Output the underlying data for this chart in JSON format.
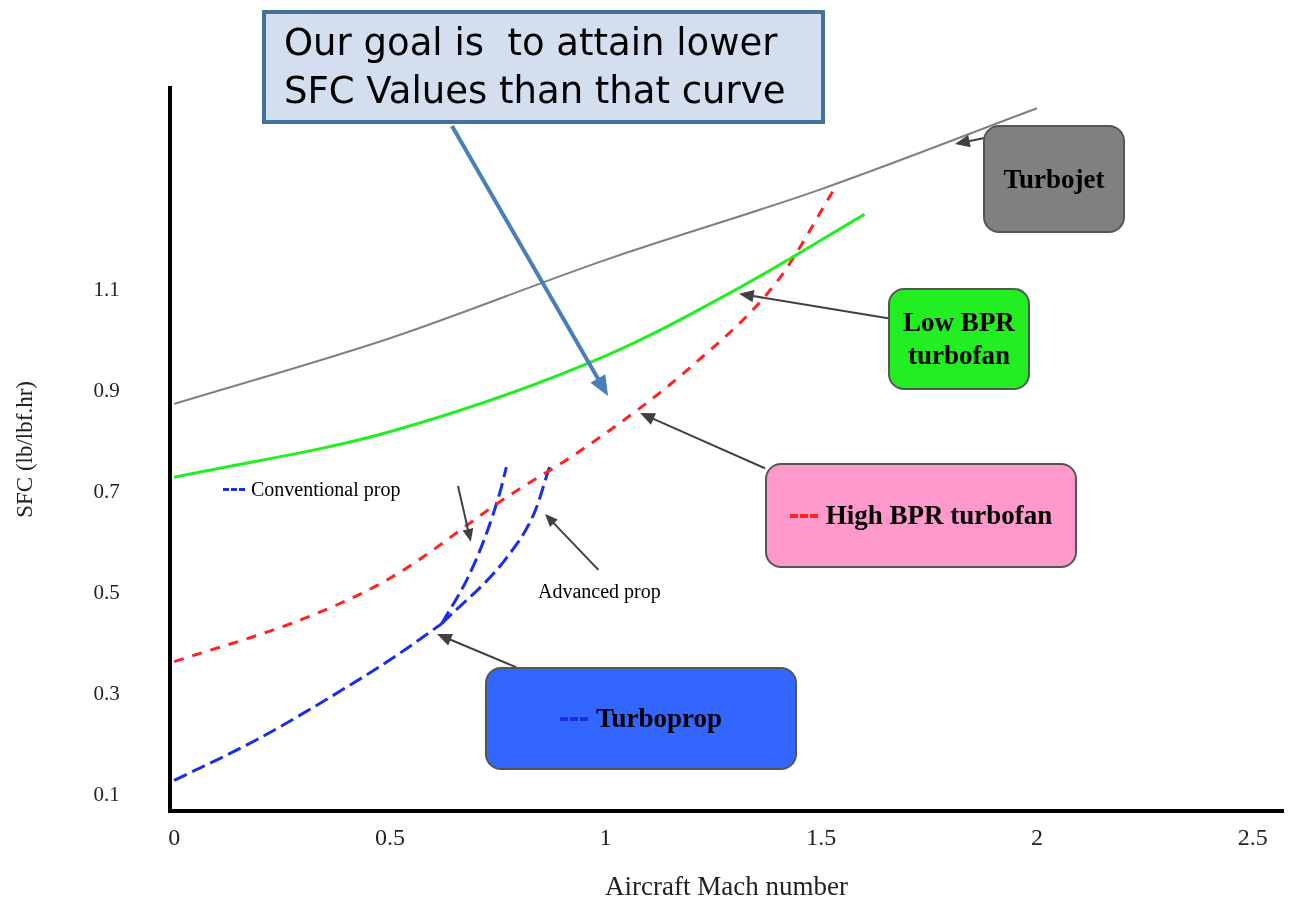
{
  "chart_data": {
    "type": "line",
    "xlabel": "Aircraft Mach number",
    "ylabel": "SFC (lb/lbf.hr)",
    "xlim": [
      -0.01,
      2.57
    ],
    "ylim": [
      0.07,
      1.5
    ],
    "xticks": [
      0,
      0.5,
      1,
      1.5,
      2,
      2.5
    ],
    "yticks": [
      0.1,
      0.3,
      0.5,
      0.7,
      0.9,
      1.1
    ],
    "series": [
      {
        "name": "Turbojet",
        "color": "#808080",
        "line_style": "solid",
        "x": [
          0,
          0.5,
          1,
          1.5,
          2
        ],
        "values": [
          0.875,
          1.005,
          1.16,
          1.3,
          1.46
        ]
      },
      {
        "name": "Low BPR turbofan",
        "color": "#22ee22",
        "line_style": "solid",
        "x": [
          0,
          0.5,
          1,
          1.3,
          1.6
        ],
        "values": [
          0.73,
          0.82,
          0.97,
          1.1,
          1.25
        ]
      },
      {
        "name": "High BPR turbofan",
        "color": "#ff2222",
        "line_style": "dashed",
        "x": [
          0,
          0.3,
          0.5,
          0.77,
          0.955,
          1.2,
          1.4,
          1.53
        ],
        "values": [
          0.365,
          0.45,
          0.53,
          0.69,
          0.79,
          0.95,
          1.12,
          1.3
        ]
      },
      {
        "name": "Turboprop",
        "color": "#1a2ee8",
        "line_style": "dashed",
        "x": [
          0,
          0.19,
          0.41,
          0.52,
          0.62
        ],
        "values": [
          0.13,
          0.21,
          0.32,
          0.38,
          0.44
        ]
      },
      {
        "name": "Conventional prop",
        "color": "#1a2ee8",
        "line_style": "dashed",
        "x": [
          0.62,
          0.68,
          0.72,
          0.755,
          0.77
        ],
        "values": [
          0.44,
          0.53,
          0.61,
          0.7,
          0.75
        ]
      },
      {
        "name": "Advanced prop",
        "color": "#1a2ee8",
        "line_style": "dashed",
        "x": [
          0.62,
          0.77,
          0.835,
          0.87
        ],
        "values": [
          0.44,
          0.57,
          0.66,
          0.75
        ]
      }
    ],
    "legend": "bottom",
    "annotations": [
      "Our goal is  to attain lower SFC Values than that curve"
    ]
  }
}
